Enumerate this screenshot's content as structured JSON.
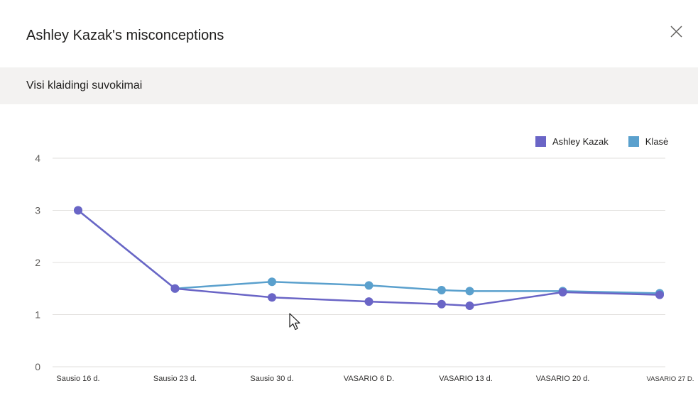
{
  "dialog": {
    "title": "Ashley Kazak's misconceptions",
    "close_label": "Close"
  },
  "section": {
    "title": "Visi klaidingi suvokimai"
  },
  "colors": {
    "student": "#6a65c6",
    "class": "#5aa0cd",
    "grid": "#e1dfdd",
    "axis_text": "#605e5c"
  },
  "icons": {
    "close": "close-icon",
    "cursor": "mouse-pointer-icon"
  },
  "chart_data": {
    "type": "line",
    "title": "",
    "xlabel": "",
    "ylabel": "",
    "ylim": [
      0,
      4
    ],
    "yticks": [
      0,
      1,
      2,
      3,
      4
    ],
    "grid": true,
    "legend_position": "top-right",
    "categories": [
      "Sausio 16 d.",
      "Sausio 23 d.",
      "Sausio 30 d.",
      "VASARIO 6 D.",
      "VASARIO 13 d.",
      "VASARIO 20 d.",
      "VASARIO 27 D."
    ],
    "series": [
      {
        "name": "Ashley Kazak",
        "color": "#6a65c6",
        "points": [
          {
            "x": 0,
            "y": 3.0
          },
          {
            "x": 1,
            "y": 1.5
          },
          {
            "x": 2,
            "y": 1.33
          },
          {
            "x": 3,
            "y": 1.25
          },
          {
            "x": 3.75,
            "y": 1.2
          },
          {
            "x": 4.04,
            "y": 1.17
          },
          {
            "x": 5,
            "y": 1.43
          },
          {
            "x": 6,
            "y": 1.38
          }
        ]
      },
      {
        "name": "Klasė",
        "color": "#5aa0cd",
        "points": [
          {
            "x": 0,
            "y": 3.0
          },
          {
            "x": 1,
            "y": 1.5
          },
          {
            "x": 2,
            "y": 1.63
          },
          {
            "x": 3,
            "y": 1.56
          },
          {
            "x": 3.75,
            "y": 1.47
          },
          {
            "x": 4.04,
            "y": 1.45
          },
          {
            "x": 5,
            "y": 1.45
          },
          {
            "x": 6,
            "y": 1.41
          }
        ]
      }
    ]
  }
}
